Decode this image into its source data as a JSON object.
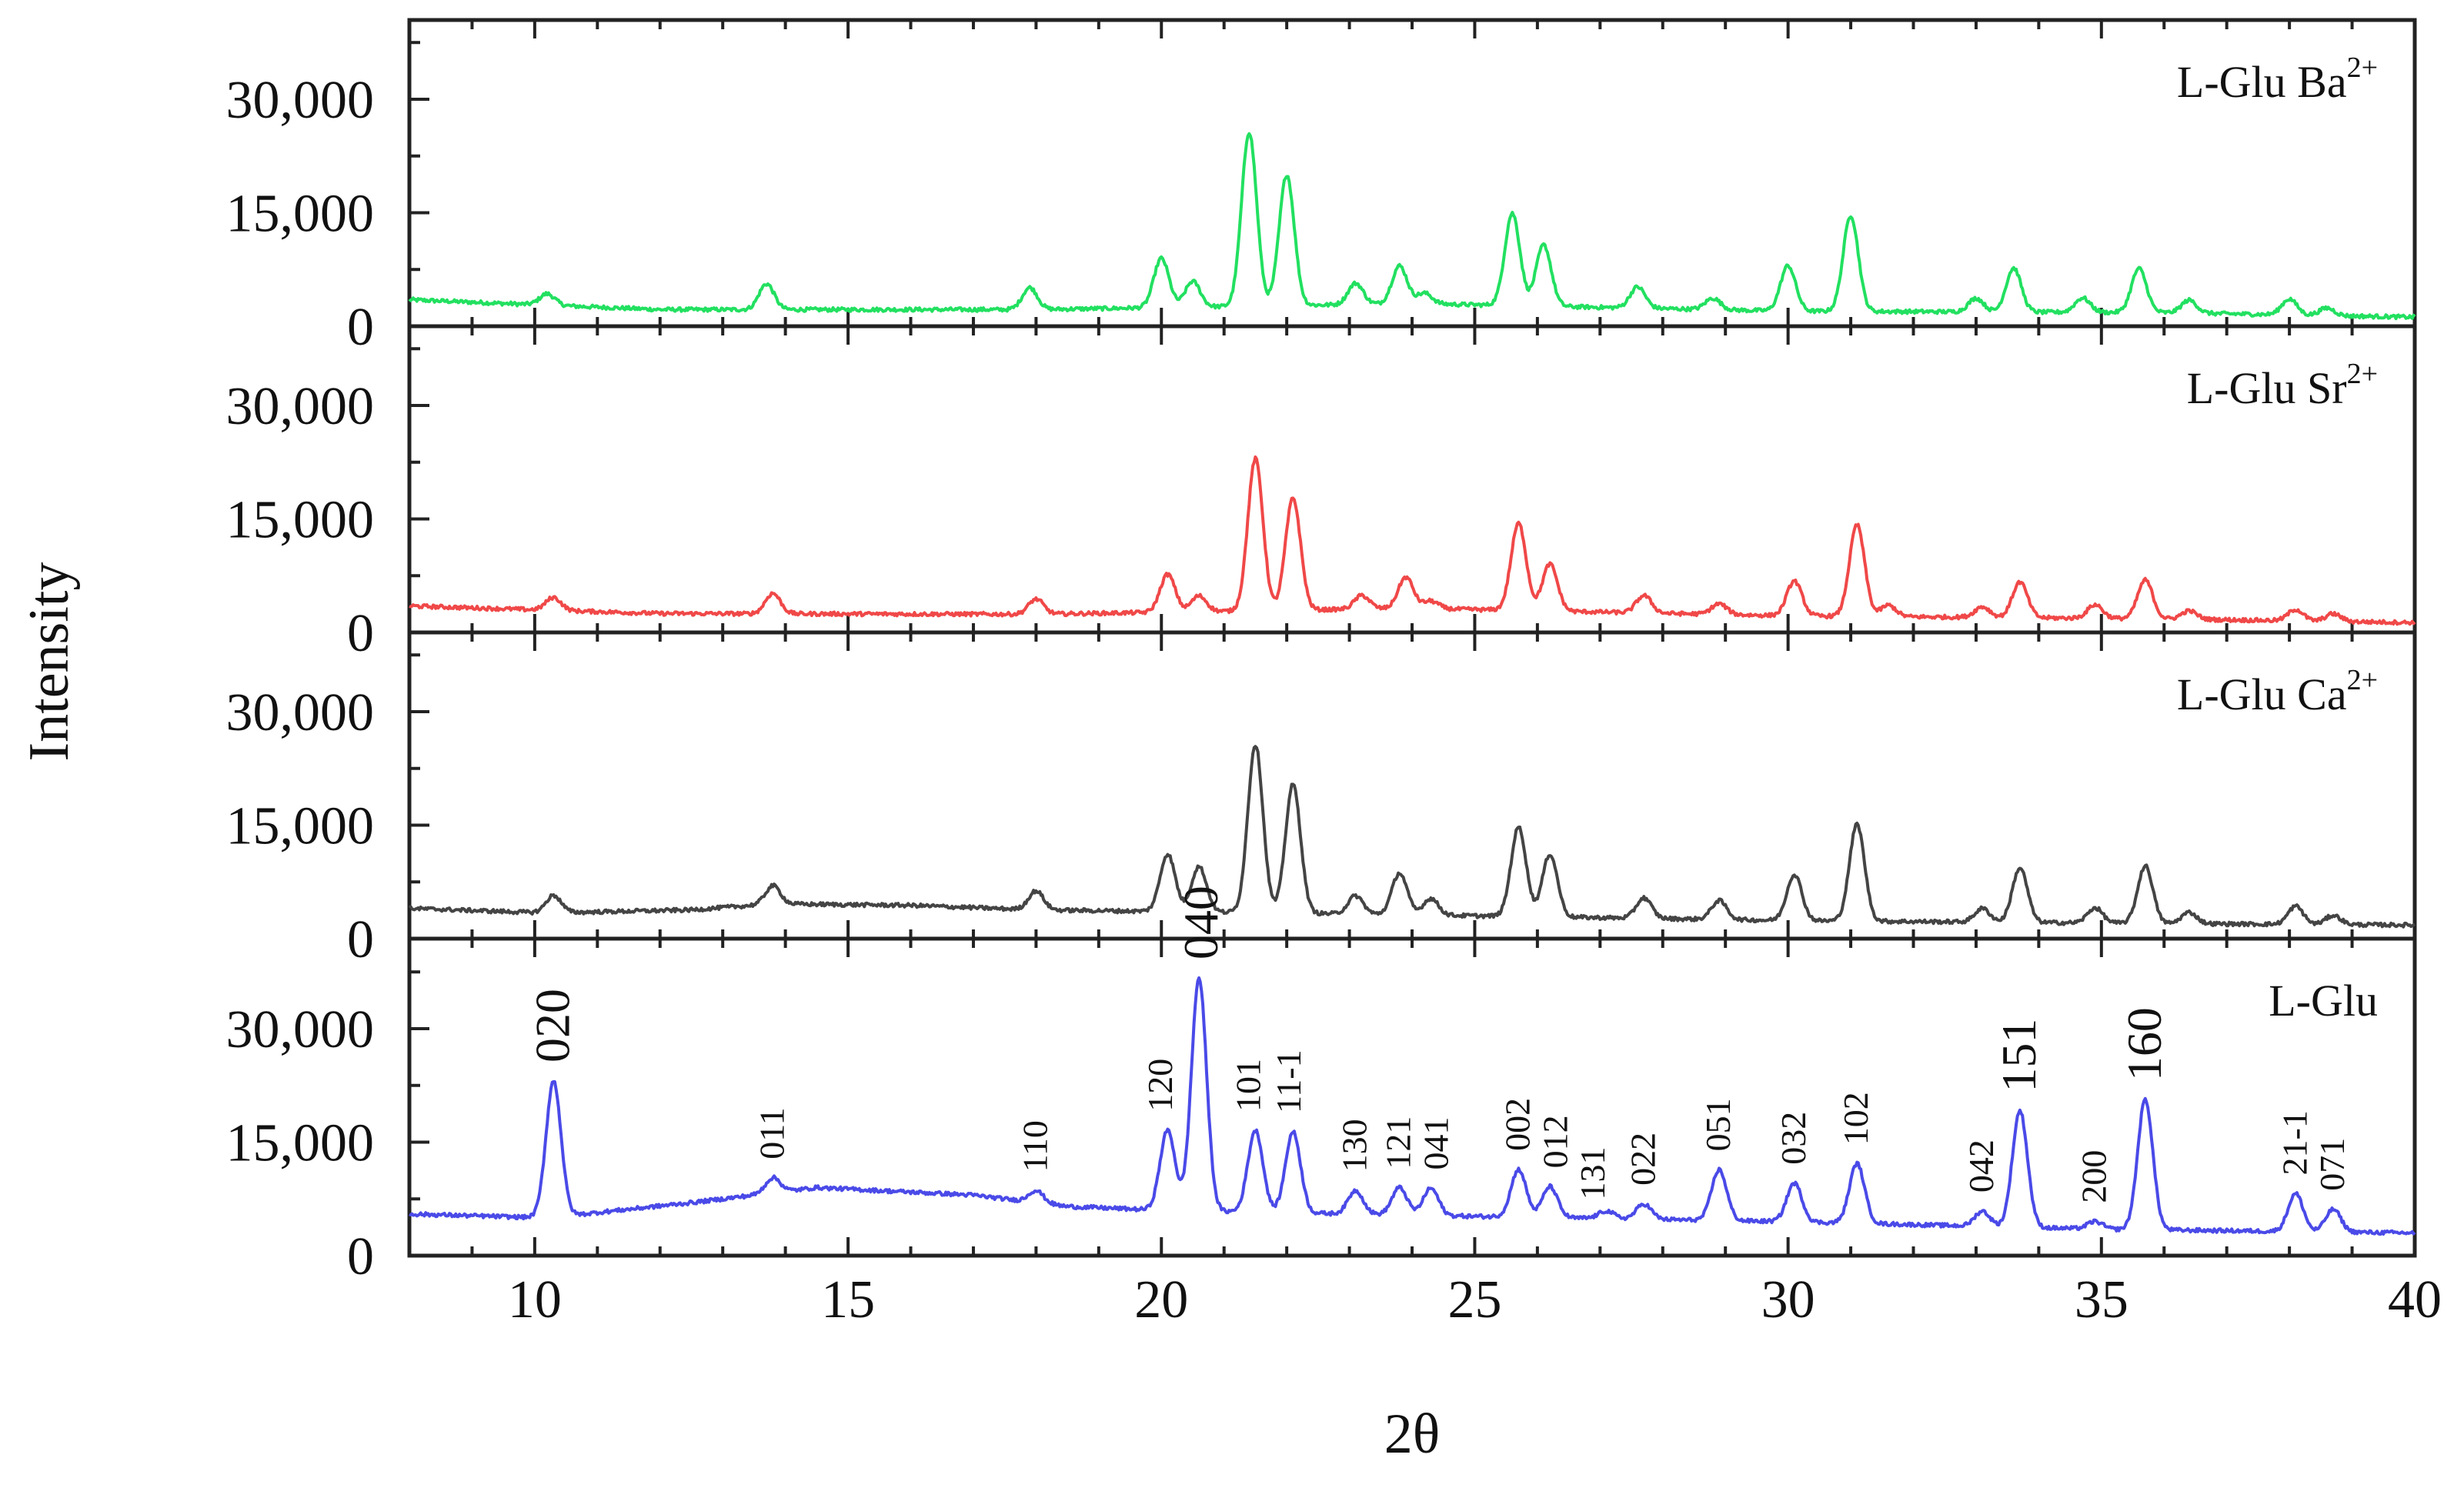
{
  "chart_data": {
    "type": "line",
    "xlabel": "2θ",
    "ylabel": "Intensity",
    "xlim": [
      8,
      40
    ],
    "x_ticks": [
      10,
      15,
      20,
      25,
      30,
      35,
      40
    ],
    "ylim": [
      0,
      40000
    ],
    "y_ticks": [
      0,
      15000,
      30000
    ],
    "y_tick_labels": [
      "0",
      "15,000",
      "30,000"
    ],
    "x_tick_labels": [
      "10",
      "15",
      "20",
      "25",
      "30",
      "35",
      "40"
    ],
    "panels": [
      {
        "label": "L-Glu Ba",
        "label_superscript": "2+",
        "color": "#22e060",
        "baseline": [
          [
            8,
            3500
          ],
          [
            12,
            2200
          ],
          [
            18,
            2200
          ],
          [
            24,
            3000
          ],
          [
            30,
            2000
          ],
          [
            36,
            1800
          ],
          [
            40,
            1200
          ]
        ],
        "peaks": [
          [
            10.2,
            1500
          ],
          [
            13.7,
            3400
          ],
          [
            17.9,
            2900
          ],
          [
            20.0,
            6500
          ],
          [
            20.5,
            3400
          ],
          [
            21.4,
            23000
          ],
          [
            22.0,
            17300
          ],
          [
            23.1,
            2800
          ],
          [
            23.8,
            5000
          ],
          [
            24.2,
            1400
          ],
          [
            25.6,
            12200
          ],
          [
            26.1,
            8100
          ],
          [
            27.6,
            2800
          ],
          [
            28.8,
            1500
          ],
          [
            30.0,
            6000
          ],
          [
            31.0,
            12700
          ],
          [
            33.0,
            1800
          ],
          [
            33.6,
            5800
          ],
          [
            34.7,
            1900
          ],
          [
            35.6,
            5800
          ],
          [
            36.4,
            1700
          ],
          [
            38.0,
            2100
          ],
          [
            38.6,
            1000
          ]
        ]
      },
      {
        "label": "L-Glu Sr",
        "label_superscript": "2+",
        "color": "#f04848",
        "baseline": [
          [
            8,
            3500
          ],
          [
            12,
            2500
          ],
          [
            18,
            2400
          ],
          [
            24,
            3200
          ],
          [
            30,
            2200
          ],
          [
            36,
            1800
          ],
          [
            40,
            1300
          ]
        ],
        "peaks": [
          [
            10.3,
            1700
          ],
          [
            13.8,
            2700
          ],
          [
            18.0,
            2000
          ],
          [
            20.1,
            5000
          ],
          [
            20.6,
            2100
          ],
          [
            21.5,
            20100
          ],
          [
            22.1,
            14800
          ],
          [
            23.2,
            1800
          ],
          [
            23.9,
            4100
          ],
          [
            24.3,
            1000
          ],
          [
            25.7,
            11500
          ],
          [
            26.2,
            6200
          ],
          [
            27.7,
            2300
          ],
          [
            28.9,
            1400
          ],
          [
            30.1,
            4600
          ],
          [
            31.1,
            12100
          ],
          [
            31.6,
            1500
          ],
          [
            33.1,
            1400
          ],
          [
            33.7,
            4700
          ],
          [
            34.9,
            1800
          ],
          [
            35.7,
            5100
          ],
          [
            36.4,
            1100
          ],
          [
            38.1,
            1500
          ],
          [
            38.7,
            1000
          ]
        ]
      },
      {
        "label": "L-Glu Ca",
        "label_superscript": "2+",
        "color": "#444444",
        "baseline": [
          [
            8,
            4000
          ],
          [
            10.2,
            3400
          ],
          [
            12.5,
            3800
          ],
          [
            13.8,
            4600
          ],
          [
            16,
            4400
          ],
          [
            18,
            3800
          ],
          [
            22,
            3400
          ],
          [
            30,
            2400
          ],
          [
            36,
            2000
          ],
          [
            40,
            1800
          ]
        ],
        "peaks": [
          [
            10.3,
            2300
          ],
          [
            13.8,
            2400
          ],
          [
            18.0,
            2500
          ],
          [
            20.1,
            7600
          ],
          [
            20.6,
            6000
          ],
          [
            21.5,
            22200
          ],
          [
            22.1,
            17000
          ],
          [
            23.1,
            2400
          ],
          [
            23.8,
            5500
          ],
          [
            24.3,
            2200
          ],
          [
            25.7,
            11800
          ],
          [
            26.2,
            8300
          ],
          [
            27.7,
            2700
          ],
          [
            28.9,
            2500
          ],
          [
            30.1,
            6100
          ],
          [
            31.1,
            12800
          ],
          [
            33.1,
            1800
          ],
          [
            33.7,
            7200
          ],
          [
            34.9,
            2000
          ],
          [
            35.7,
            7600
          ],
          [
            36.4,
            1500
          ],
          [
            38.1,
            2400
          ],
          [
            38.7,
            1200
          ]
        ]
      },
      {
        "label": "L-Glu",
        "label_superscript": "",
        "color": "#4a4ae8",
        "baseline": [
          [
            8,
            5500
          ],
          [
            10.2,
            5000
          ],
          [
            12.5,
            7000
          ],
          [
            14.5,
            9000
          ],
          [
            17,
            8000
          ],
          [
            18.5,
            6500
          ],
          [
            20,
            6000
          ],
          [
            25,
            5200
          ],
          [
            30,
            4500
          ],
          [
            35,
            3500
          ],
          [
            40,
            3000
          ]
        ],
        "peaks": [
          [
            10.3,
            18000
          ],
          [
            13.8,
            2000
          ],
          [
            18.0,
            1600
          ],
          [
            20.1,
            10600
          ],
          [
            20.6,
            30800
          ],
          [
            21.5,
            10800
          ],
          [
            22.1,
            10700
          ],
          [
            23.1,
            3100
          ],
          [
            23.8,
            3600
          ],
          [
            24.3,
            3600
          ],
          [
            25.7,
            6300
          ],
          [
            26.2,
            4100
          ],
          [
            27.1,
            1000
          ],
          [
            27.7,
            2000
          ],
          [
            28.9,
            6700
          ],
          [
            30.1,
            5100
          ],
          [
            31.1,
            7900
          ],
          [
            33.1,
            2000
          ],
          [
            33.7,
            15400
          ],
          [
            34.9,
            1000
          ],
          [
            35.7,
            17200
          ],
          [
            38.1,
            5000
          ],
          [
            38.7,
            3000
          ]
        ],
        "hkl_labels": [
          {
            "text": "020",
            "x": 10.3,
            "big": true
          },
          {
            "text": "011",
            "x": 13.8,
            "big": false
          },
          {
            "text": "110",
            "x": 18.0,
            "big": false
          },
          {
            "text": "120",
            "x": 20.0,
            "big": false
          },
          {
            "text": "040",
            "x": 20.65,
            "big": true
          },
          {
            "text": "101",
            "x": 21.4,
            "big": false
          },
          {
            "text": "11-1",
            "x": 22.05,
            "big": false
          },
          {
            "text": "130",
            "x": 23.1,
            "big": false
          },
          {
            "text": "121",
            "x": 23.8,
            "big": false
          },
          {
            "text": "041",
            "x": 24.4,
            "big": false
          },
          {
            "text": "002",
            "x": 25.7,
            "big": false
          },
          {
            "text": "012",
            "x": 26.3,
            "big": false
          },
          {
            "text": "131",
            "x": 26.9,
            "big": false
          },
          {
            "text": "022",
            "x": 27.7,
            "big": false
          },
          {
            "text": "051",
            "x": 28.9,
            "big": false
          },
          {
            "text": "032",
            "x": 30.1,
            "big": false
          },
          {
            "text": "102",
            "x": 31.1,
            "big": false
          },
          {
            "text": "042",
            "x": 33.1,
            "big": false
          },
          {
            "text": "151",
            "x": 33.7,
            "big": true
          },
          {
            "text": "200",
            "x": 34.9,
            "big": false
          },
          {
            "text": "160",
            "x": 35.7,
            "big": true
          },
          {
            "text": "21-1",
            "x": 38.1,
            "big": false
          },
          {
            "text": "071",
            "x": 38.7,
            "big": false
          }
        ]
      }
    ]
  }
}
